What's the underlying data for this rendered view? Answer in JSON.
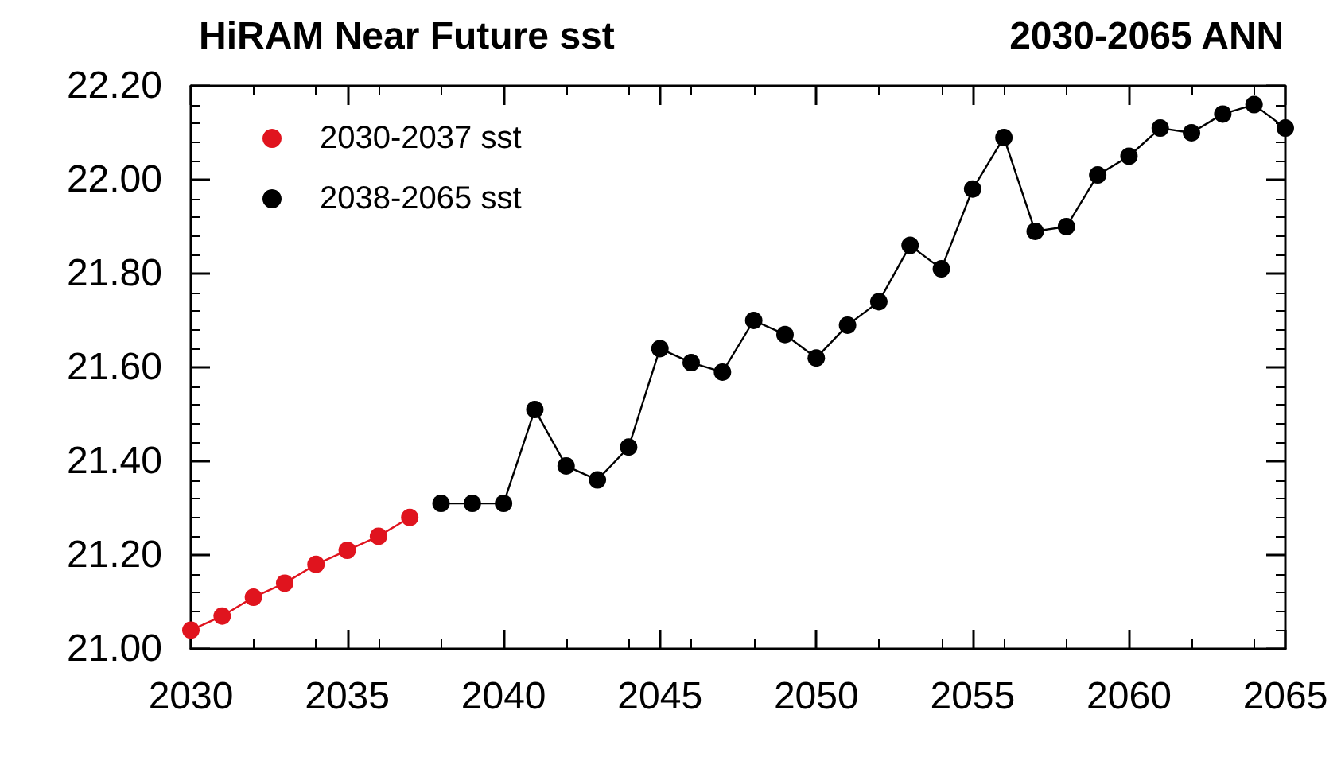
{
  "chart_data": {
    "type": "line",
    "title": "HiRAM Near Future sst",
    "subtitle": "2030-2065 ANN",
    "series": [
      {
        "name": "2030-2037 sst",
        "color": "#e0141e",
        "x": [
          2030,
          2031,
          2032,
          2033,
          2034,
          2035,
          2036,
          2037
        ],
        "values": [
          21.04,
          21.07,
          21.11,
          21.14,
          21.18,
          21.21,
          21.24,
          21.28
        ]
      },
      {
        "name": "2038-2065 sst",
        "color": "#000000",
        "x": [
          2038,
          2039,
          2040,
          2041,
          2042,
          2043,
          2044,
          2045,
          2046,
          2047,
          2048,
          2049,
          2050,
          2051,
          2052,
          2053,
          2054,
          2055,
          2056,
          2057,
          2058,
          2059,
          2060,
          2061,
          2062,
          2063,
          2064,
          2065
        ],
        "values": [
          21.31,
          21.31,
          21.31,
          21.51,
          21.39,
          21.36,
          21.43,
          21.64,
          21.61,
          21.59,
          21.7,
          21.67,
          21.62,
          21.69,
          21.74,
          21.86,
          21.81,
          21.98,
          22.09,
          21.89,
          21.9,
          22.01,
          22.05,
          22.11,
          22.1,
          22.14,
          22.16,
          22.11
        ]
      }
    ],
    "xlim": [
      2030,
      2065
    ],
    "xticks": [
      2030,
      2035,
      2040,
      2045,
      2050,
      2055,
      2060,
      2065
    ],
    "ylim": [
      21.0,
      22.2
    ],
    "yticks": [
      {
        "value": 21.0,
        "label": "21.00"
      },
      {
        "value": 21.2,
        "label": "21.20"
      },
      {
        "value": 21.4,
        "label": "21.40"
      },
      {
        "value": 21.6,
        "label": "21.60"
      },
      {
        "value": 21.8,
        "label": "21.80"
      },
      {
        "value": 22.0,
        "label": "22.00"
      },
      {
        "value": 22.2,
        "label": "22.20"
      }
    ],
    "grid": false,
    "legend": "top left",
    "marker": "circle",
    "line_style": "solid"
  }
}
